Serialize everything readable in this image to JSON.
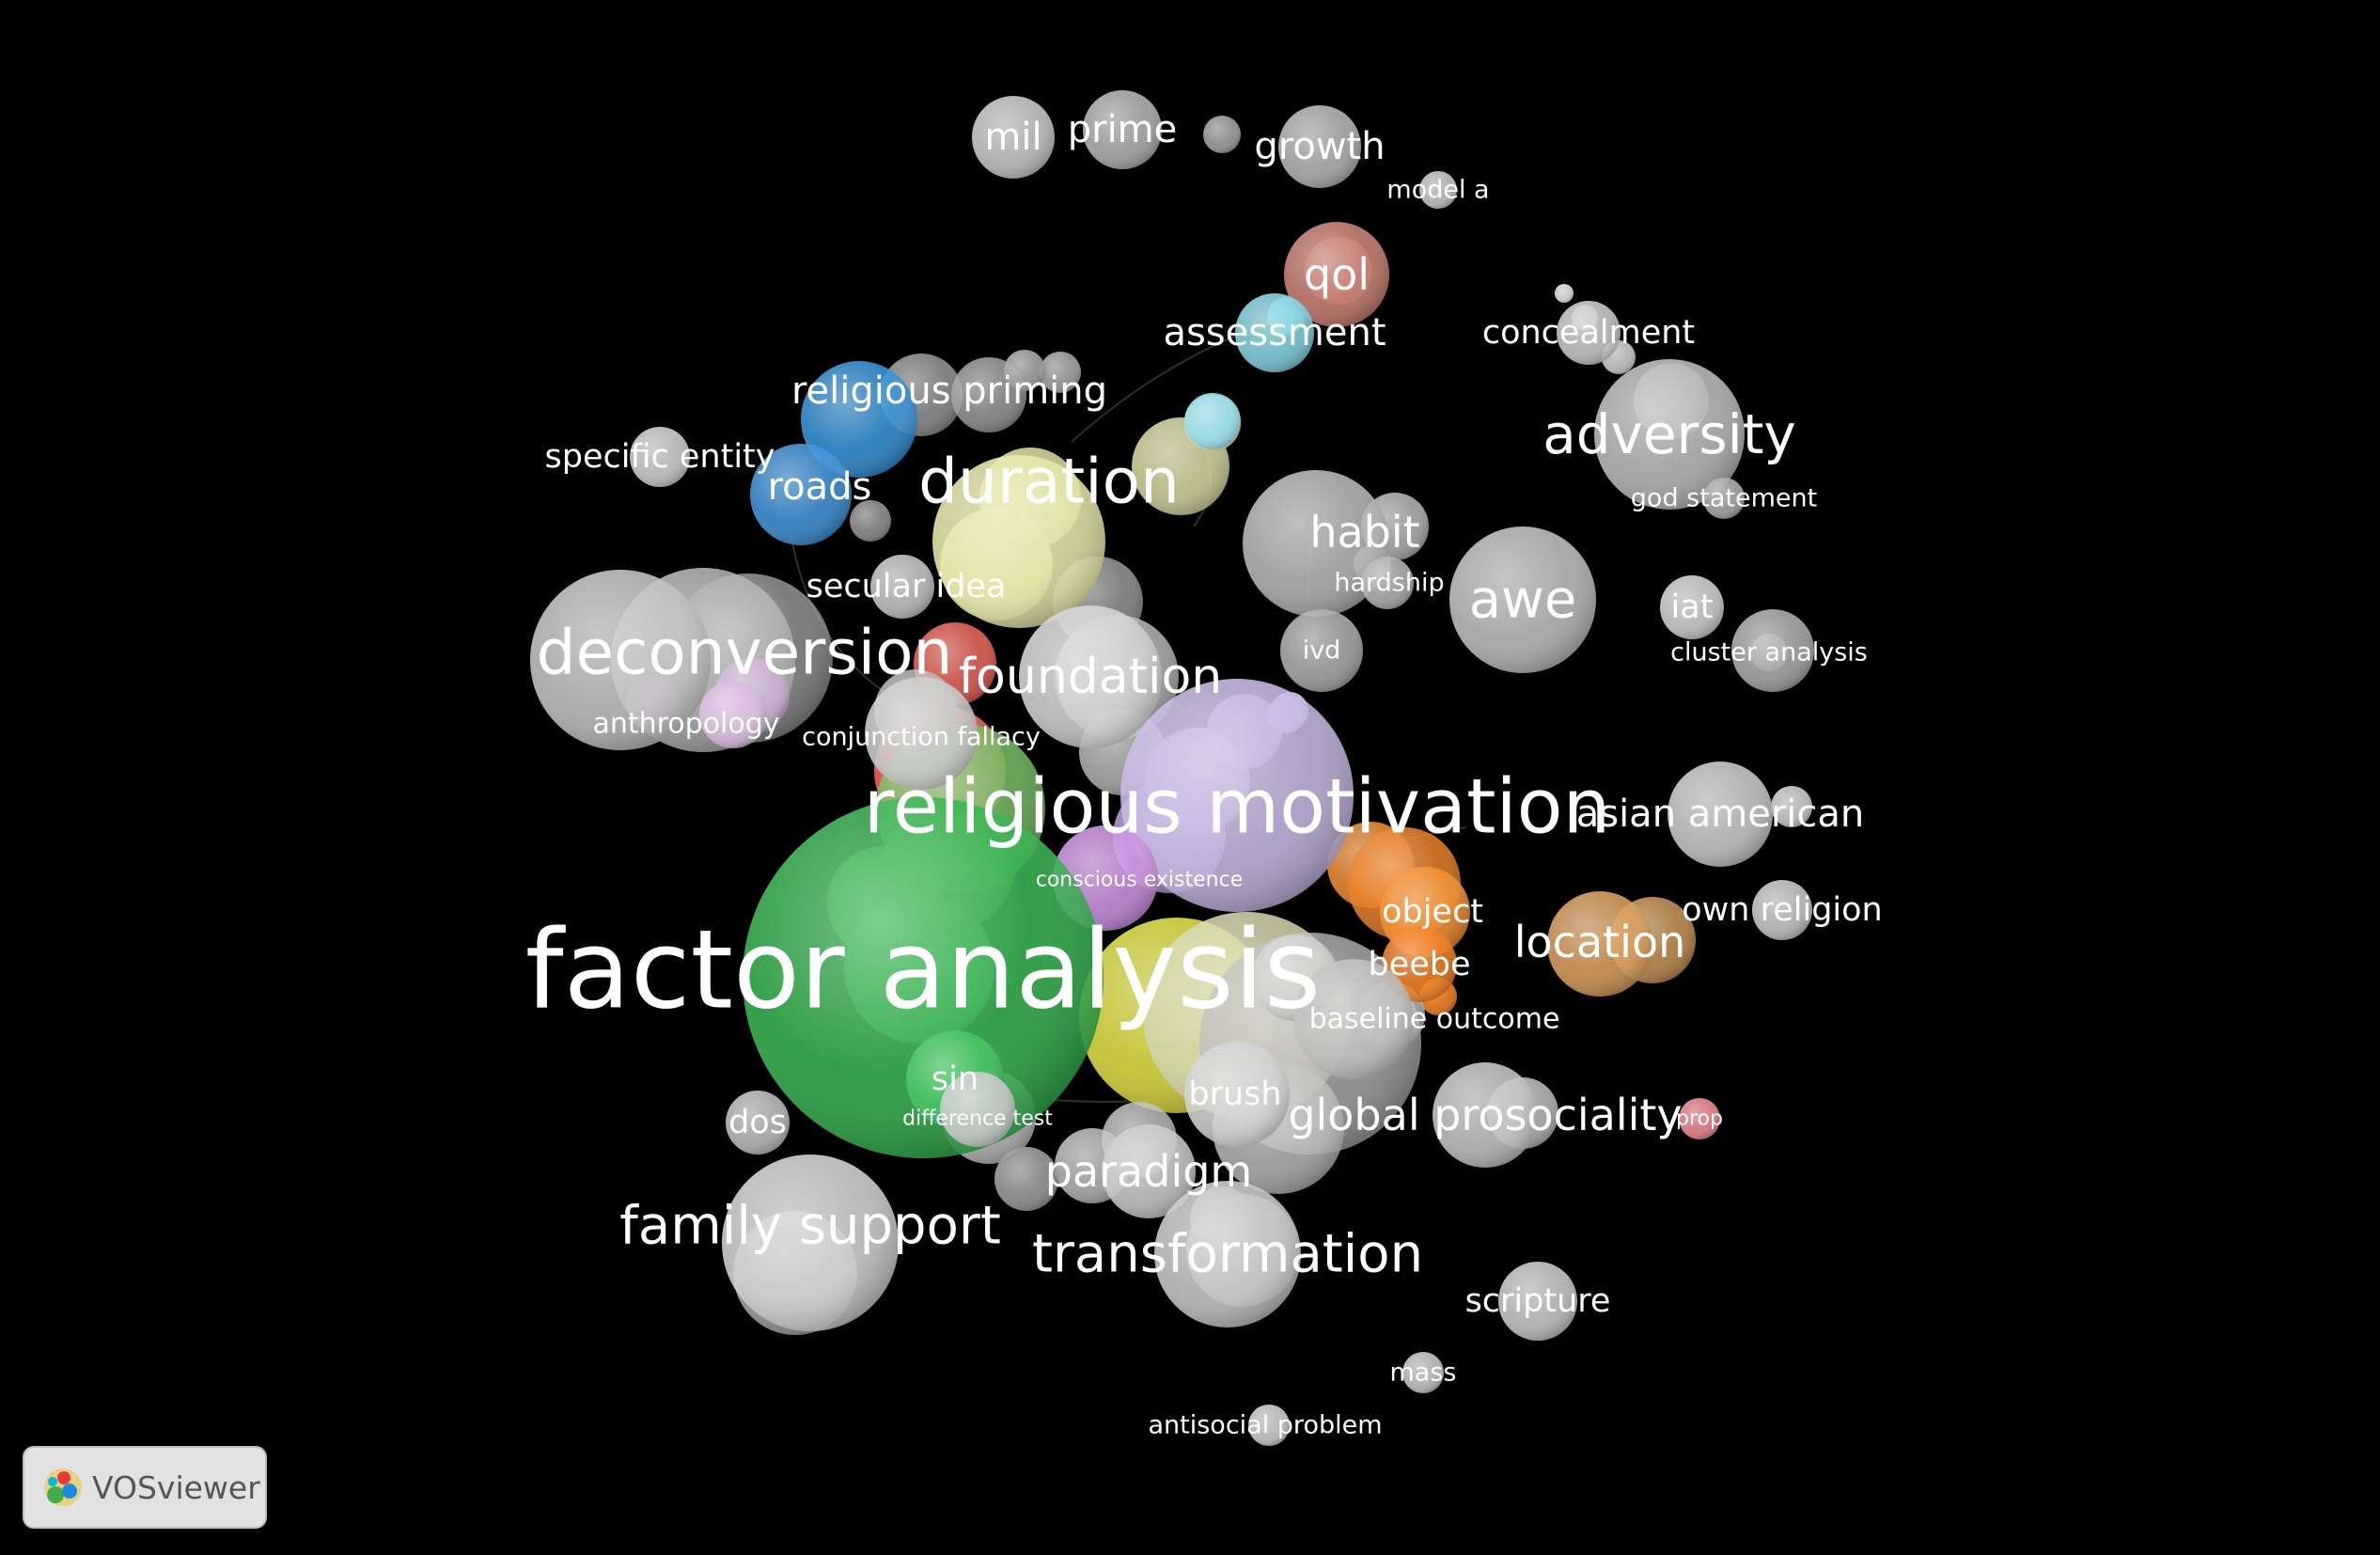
{
  "app": {
    "name": "VOSviewer"
  },
  "map": {
    "items": [
      {
        "id": "mil",
        "label": "mil",
        "color": "#c8c8c8"
      },
      {
        "id": "prime",
        "label": "prime",
        "color": "#b0b0b0"
      },
      {
        "id": "small1",
        "label": "",
        "color": "#a0a0a0"
      },
      {
        "id": "growth",
        "label": "growth",
        "color": "#b4b4b4"
      },
      {
        "id": "model-a",
        "label": "model a",
        "color": "#c8c8c8"
      },
      {
        "id": "qol",
        "label": "qol",
        "color": "#c77b6e"
      },
      {
        "id": "assessment",
        "label": "assessment",
        "color": "#7fd3e0"
      },
      {
        "id": "concealment",
        "label": "concealment",
        "color": "#c8c8c8"
      },
      {
        "id": "adversity",
        "label": "adversity",
        "color": "#b8b8b8"
      },
      {
        "id": "god-statement",
        "label": "god statement",
        "color": "#a8a8a8"
      },
      {
        "id": "religious-priming",
        "label": "religious priming",
        "color": "#2f8ed6"
      },
      {
        "id": "specific-entity",
        "label": "specific entity",
        "color": "#cfcfcf"
      },
      {
        "id": "roads",
        "label": "roads",
        "color": "#3a8fd8"
      },
      {
        "id": "duration",
        "label": "duration",
        "color": "#e6e6a6"
      },
      {
        "id": "habit",
        "label": "habit",
        "color": "#b4b4b4"
      },
      {
        "id": "hardship",
        "label": "hardship",
        "color": "#b0b0b0"
      },
      {
        "id": "awe",
        "label": "awe",
        "color": "#bdbdbd"
      },
      {
        "id": "iat",
        "label": "iat",
        "color": "#d0d0d0"
      },
      {
        "id": "cluster-analysis",
        "label": "cluster analysis",
        "color": "#a8a8a8"
      },
      {
        "id": "secular-idea",
        "label": "secular idea",
        "color": "#c4c4c4"
      },
      {
        "id": "deconversion",
        "label": "deconversion",
        "color": "#c0c0c0"
      },
      {
        "id": "foundation",
        "label": "foundation",
        "color": "#d2d2d2"
      },
      {
        "id": "ivd",
        "label": "ivd",
        "color": "#a8a8a8"
      },
      {
        "id": "anthropology",
        "label": "anthropology",
        "color": "#d6b8dc"
      },
      {
        "id": "conjunction-fallacy",
        "label": "conjunction fallacy",
        "color": "#c8c8c8"
      },
      {
        "id": "religious-motivation",
        "label": "religious motivation",
        "color": "#c4b4e0"
      },
      {
        "id": "asian-american",
        "label": "asian american",
        "color": "#c8c8c8"
      },
      {
        "id": "conscious-existence",
        "label": "conscious existence",
        "color": "#c98ce0"
      },
      {
        "id": "object",
        "label": "object",
        "color": "#f08a2a"
      },
      {
        "id": "own-religion",
        "label": "own religion",
        "color": "#c8c8c8"
      },
      {
        "id": "location",
        "label": "location",
        "color": "#d79a55"
      },
      {
        "id": "factor-analysis",
        "label": "factor analysis",
        "color": "#2fb04a"
      },
      {
        "id": "beebe",
        "label": "beebe",
        "color": "#f07a1a"
      },
      {
        "id": "baseline-outcome",
        "label": "baseline outcome",
        "color": "#bcbcbc"
      },
      {
        "id": "sin",
        "label": "sin",
        "color": "#3cc05a"
      },
      {
        "id": "difference-test",
        "label": "difference test",
        "color": "#c8c8c8"
      },
      {
        "id": "brush",
        "label": "brush",
        "color": "#d0d0d0"
      },
      {
        "id": "global-prosociality",
        "label": "global prosociality",
        "color": "#c2c2c2"
      },
      {
        "id": "prop",
        "label": "prop",
        "color": "#f08890"
      },
      {
        "id": "dos",
        "label": "dos",
        "color": "#bdbdbd"
      },
      {
        "id": "paradigm",
        "label": "paradigm",
        "color": "#c8c8c8"
      },
      {
        "id": "family-support",
        "label": "family support",
        "color": "#d0d0d0"
      },
      {
        "id": "transformation",
        "label": "transformation",
        "color": "#c6c6c6"
      },
      {
        "id": "scripture",
        "label": "scripture",
        "color": "#c8c8c8"
      },
      {
        "id": "mass",
        "label": "mass",
        "color": "#c8c8c8"
      },
      {
        "id": "antisocial-problem",
        "label": "antisocial problem",
        "color": "#cfcfcf"
      }
    ]
  }
}
